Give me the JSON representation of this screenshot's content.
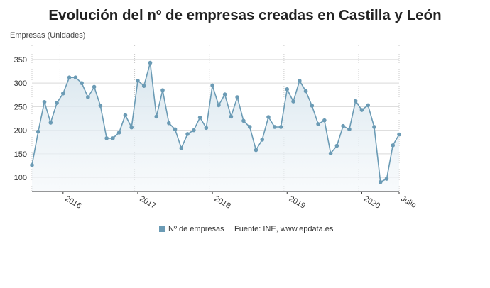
{
  "title": "Evolución del nº de empresas creadas en Castilla y León",
  "legend_label": "Nº de empresas",
  "source": "Fuente: INE, www.epdata.es",
  "chart_data": {
    "type": "area",
    "title": "Evolución del nº de empresas creadas en Castilla y León",
    "ylabel": "Empresas (Unidades)",
    "xlabel": "",
    "ylim": [
      70,
      380
    ],
    "yticks": [
      100,
      150,
      200,
      250,
      300,
      350
    ],
    "xticks": [
      "2016",
      "2017",
      "2018",
      "2019",
      "2020",
      "Julio"
    ],
    "grid": true,
    "line_color": "#6b9bb5",
    "series": [
      {
        "name": "Nº de empresas",
        "x": [
          "2015-08",
          "2015-09",
          "2015-10",
          "2015-11",
          "2015-12",
          "2016-01",
          "2016-02",
          "2016-03",
          "2016-04",
          "2016-05",
          "2016-06",
          "2016-07",
          "2016-08",
          "2016-09",
          "2016-10",
          "2016-11",
          "2016-12",
          "2017-01",
          "2017-02",
          "2017-03",
          "2017-04",
          "2017-05",
          "2017-06",
          "2017-07",
          "2017-08",
          "2017-09",
          "2017-10",
          "2017-11",
          "2017-12",
          "2018-01",
          "2018-02",
          "2018-03",
          "2018-04",
          "2018-05",
          "2018-06",
          "2018-07",
          "2018-08",
          "2018-09",
          "2018-10",
          "2018-11",
          "2018-12",
          "2019-01",
          "2019-02",
          "2019-03",
          "2019-04",
          "2019-05",
          "2019-06",
          "2019-07",
          "2019-08",
          "2019-09",
          "2019-10",
          "2019-11",
          "2019-12",
          "2020-01",
          "2020-02",
          "2020-03",
          "2020-04",
          "2020-05",
          "2020-06",
          "2020-07"
        ],
        "values": [
          126,
          197,
          260,
          216,
          258,
          278,
          312,
          312,
          300,
          270,
          292,
          252,
          183,
          183,
          195,
          232,
          206,
          305,
          294,
          343,
          229,
          285,
          215,
          202,
          162,
          192,
          200,
          227,
          205,
          295,
          253,
          276,
          229,
          270,
          220,
          207,
          158,
          180,
          228,
          207,
          207,
          287,
          261,
          305,
          283,
          252,
          213,
          221,
          151,
          167,
          209,
          202,
          262,
          243,
          253,
          207,
          90,
          97,
          168,
          191
        ]
      }
    ]
  }
}
